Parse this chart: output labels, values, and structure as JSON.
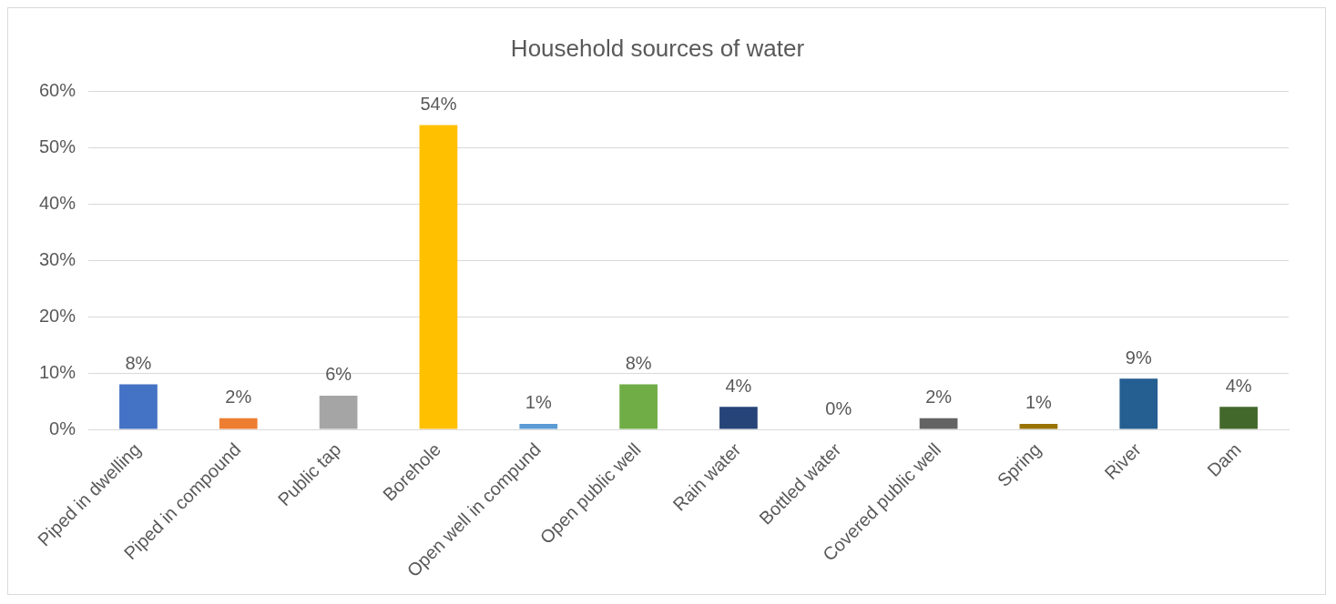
{
  "chart_data": {
    "type": "bar",
    "title": "Household sources of water",
    "categories": [
      "Piped in dwelling",
      "Piped in compound",
      "Public tap",
      "Borehole",
      "Open well in compund",
      "Open public well",
      "Rain water",
      "Bottled water",
      "Covered public well",
      "Spring",
      "River",
      "Dam"
    ],
    "values": [
      8,
      2,
      6,
      54,
      1,
      8,
      4,
      0,
      2,
      1,
      9,
      4
    ],
    "value_labels": [
      "8%",
      "2%",
      "6%",
      "54%",
      "1%",
      "8%",
      "4%",
      "0%",
      "2%",
      "1%",
      "9%",
      "4%"
    ],
    "colors": [
      "#4472c4",
      "#ed7d31",
      "#a5a5a5",
      "#ffc000",
      "#5b9bd5",
      "#70ad47",
      "#264478",
      "#9e480e",
      "#636363",
      "#997300",
      "#255e91",
      "#43682b"
    ],
    "ylim": [
      0,
      60
    ],
    "yticks": [
      {
        "value": 0,
        "label": "0%"
      },
      {
        "value": 10,
        "label": "10%"
      },
      {
        "value": 20,
        "label": "20%"
      },
      {
        "value": 30,
        "label": "30%"
      },
      {
        "value": 40,
        "label": "40%"
      },
      {
        "value": 50,
        "label": "50%"
      },
      {
        "value": 60,
        "label": "60%"
      }
    ],
    "grid": "y",
    "legend": false
  }
}
